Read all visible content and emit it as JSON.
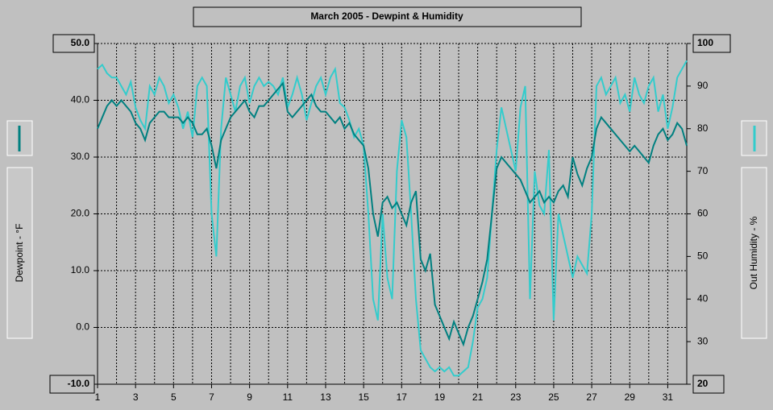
{
  "chart_data": {
    "type": "line",
    "title": "March 2005 - Dewpint & Humidity",
    "ylabel": "Dewpoint - °F",
    "y2label": "Out Humidity - %",
    "xlim": [
      1,
      32
    ],
    "xticks": [
      1,
      3,
      5,
      7,
      9,
      11,
      13,
      15,
      17,
      19,
      21,
      23,
      25,
      27,
      29,
      31
    ],
    "minor_xticks": [
      2,
      4,
      6,
      8,
      10,
      12,
      14,
      16,
      18,
      20,
      22,
      24,
      26,
      28,
      30,
      32
    ],
    "ylim": [
      -10,
      50
    ],
    "yticks": [
      {
        "value": -10,
        "label": "-10.0"
      },
      {
        "value": 0,
        "label": "0.0"
      },
      {
        "value": 10,
        "label": "10.0"
      },
      {
        "value": 20,
        "label": "20.0"
      },
      {
        "value": 30,
        "label": "30.0"
      },
      {
        "value": 40,
        "label": "40.0"
      },
      {
        "value": 50,
        "label": "50.0"
      }
    ],
    "y2lim": [
      20,
      100
    ],
    "y2ticks": [
      20,
      30,
      40,
      50,
      60,
      70,
      80,
      90,
      100
    ],
    "grid": true,
    "x": [
      1,
      1.25,
      1.5,
      1.75,
      2,
      2.25,
      2.5,
      2.75,
      3,
      3.25,
      3.5,
      3.75,
      4,
      4.25,
      4.5,
      4.75,
      5,
      5.25,
      5.5,
      5.75,
      6,
      6.25,
      6.5,
      6.75,
      7,
      7.25,
      7.5,
      7.75,
      8,
      8.25,
      8.5,
      8.75,
      9,
      9.25,
      9.5,
      9.75,
      10,
      10.25,
      10.5,
      10.75,
      11,
      11.25,
      11.5,
      11.75,
      12,
      12.25,
      12.5,
      12.75,
      13,
      13.25,
      13.5,
      13.75,
      14,
      14.25,
      14.5,
      14.75,
      15,
      15.25,
      15.5,
      15.75,
      16,
      16.25,
      16.5,
      16.75,
      17,
      17.25,
      17.5,
      17.75,
      18,
      18.25,
      18.5,
      18.75,
      19,
      19.25,
      19.5,
      19.75,
      20,
      20.25,
      20.5,
      20.75,
      21,
      21.25,
      21.5,
      21.75,
      22,
      22.25,
      22.5,
      22.75,
      23,
      23.25,
      23.5,
      23.75,
      24,
      24.25,
      24.5,
      24.75,
      25,
      25.25,
      25.5,
      25.75,
      26,
      26.25,
      26.5,
      26.75,
      27,
      27.25,
      27.5,
      27.75,
      28,
      28.25,
      28.5,
      28.75,
      29,
      29.25,
      29.5,
      29.75,
      30,
      30.25,
      30.5,
      30.75,
      31,
      31.25,
      31.5,
      31.75,
      32
    ],
    "series": [
      {
        "color": "#008080",
        "values": [
          35,
          37,
          39,
          40,
          39,
          40,
          39,
          38,
          36,
          35,
          33,
          36,
          37,
          38,
          38,
          37,
          37,
          37,
          36,
          37,
          36,
          34,
          34,
          35,
          32,
          28,
          33,
          35,
          37,
          38,
          39,
          40,
          38,
          37,
          39,
          39,
          40,
          41,
          42,
          43,
          38,
          37,
          38,
          39,
          40,
          41,
          39,
          38,
          38,
          37,
          36,
          37,
          35,
          36,
          34,
          33,
          32,
          28,
          20,
          16,
          22,
          23,
          21,
          22,
          20,
          18,
          22,
          24,
          12,
          10,
          13,
          4,
          2,
          0,
          -2,
          1,
          -1,
          -3,
          0,
          2,
          5,
          8,
          12,
          20,
          28,
          30,
          29,
          28,
          27,
          26,
          24,
          22,
          23,
          24,
          22,
          23,
          22,
          24,
          25,
          23,
          30,
          27,
          25,
          28,
          30,
          35,
          37,
          36,
          35,
          34,
          33,
          32,
          31,
          32,
          31,
          30,
          29,
          32,
          34,
          35,
          33,
          34,
          36,
          35,
          32
        ]
      },
      {
        "color": "#33cccc",
        "axis": "y2",
        "values": [
          94,
          95,
          93,
          92,
          92,
          90,
          88,
          91,
          85,
          82,
          80,
          90,
          88,
          92,
          90,
          86,
          88,
          85,
          80,
          84,
          78,
          90,
          92,
          90,
          60,
          50,
          80,
          92,
          88,
          84,
          90,
          92,
          86,
          90,
          92,
          90,
          91,
          90,
          88,
          92,
          85,
          88,
          92,
          88,
          82,
          86,
          90,
          92,
          88,
          92,
          94,
          86,
          85,
          82,
          78,
          80,
          76,
          60,
          40,
          35,
          60,
          45,
          40,
          70,
          82,
          78,
          60,
          40,
          28,
          26,
          24,
          23,
          24,
          23,
          24,
          22,
          22,
          23,
          24,
          30,
          38,
          40,
          45,
          60,
          75,
          85,
          80,
          75,
          70,
          85,
          90,
          40,
          70,
          62,
          60,
          75,
          35,
          60,
          55,
          50,
          45,
          50,
          48,
          46,
          60,
          90,
          92,
          88,
          90,
          92,
          86,
          88,
          84,
          92,
          88,
          86,
          90,
          92,
          84,
          88,
          80,
          85,
          92,
          94,
          96
        ]
      }
    ]
  }
}
